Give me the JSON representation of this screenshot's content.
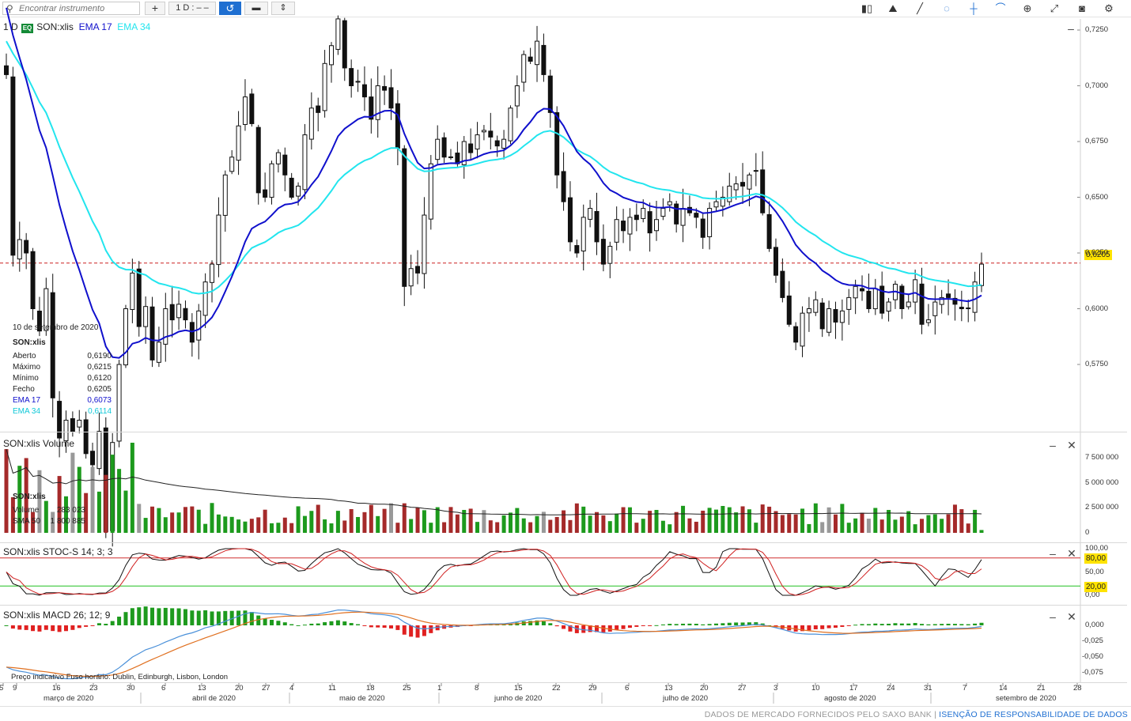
{
  "toolbar": {
    "search_placeholder": "Encontrar instrumento",
    "add_label": "+",
    "period_label": "1 D : – –",
    "icons": [
      "search-icon",
      "plus-icon",
      "refresh-icon",
      "layout-icon",
      "sort-icon",
      "candles-icon",
      "line-chart-icon",
      "draw-icon",
      "hide-icon",
      "crosshair-icon",
      "curve-icon",
      "zoom-icon",
      "fullscreen-icon",
      "camera-icon",
      "settings-icon"
    ]
  },
  "main_pane": {
    "period": "1 D",
    "badge": "EQ",
    "symbol": "SON:xlis",
    "ema17_label": "EMA 17",
    "ema34_label": "EMA 34",
    "ema17_color": "#1010cc",
    "ema34_color": "#22e5ee",
    "y_ticks": [
      "0,7250",
      "0,7000",
      "0,6750",
      "0,6500",
      "0,6250",
      "0,6000",
      "0,5750"
    ],
    "last_price_tag": "0,6205",
    "minimize": "–",
    "info": {
      "date": "10 de setembro de 2020",
      "symbol": "SON:xlis",
      "rows": [
        {
          "k": "Aberto",
          "v": "0,6190"
        },
        {
          "k": "Máximo",
          "v": "0,6215"
        },
        {
          "k": "Mínimo",
          "v": "0,6120"
        },
        {
          "k": "Fecho",
          "v": "0,6205"
        },
        {
          "k": "EMA 17",
          "v": "0,6073"
        },
        {
          "k": "EMA 34",
          "v": "0,6114"
        }
      ]
    }
  },
  "volume_pane": {
    "title": "SON:xlis  Volume",
    "y_ticks": [
      "7 500 000",
      "5 000 000",
      "2 500 000",
      "0"
    ],
    "info": {
      "symbol": "SON:xlis",
      "rows": [
        {
          "k": "Volume",
          "v": "283 023"
        },
        {
          "k": "SMA 50",
          "v": "1 800 885"
        }
      ]
    },
    "minimize": "–",
    "close": "✕"
  },
  "stoc_pane": {
    "title": "SON:xlis  STOC-S 14; 3; 3",
    "y_ticks": [
      "100,00",
      "50,00",
      "0,00"
    ],
    "tag_high": "80,00",
    "tag_low": "20,00",
    "minimize": "–",
    "close": "✕"
  },
  "macd_pane": {
    "title": "SON:xlis  MACD 26; 12; 9",
    "y_ticks": [
      "0,000",
      "-0,025",
      "-0,050",
      "-0,075"
    ],
    "note": "Preço indicativo    Fuso horário: Dublin, Edinburgh, Lisbon, London",
    "minimize": "–",
    "close": "✕"
  },
  "x_axis": {
    "day_ticks": [
      "5",
      "9",
      "16",
      "23",
      "30",
      "6",
      "13",
      "20",
      "27",
      "4",
      "11",
      "18",
      "25",
      "1",
      "8",
      "15",
      "22",
      "29",
      "6",
      "13",
      "20",
      "27",
      "3",
      "10",
      "17",
      "24",
      "31",
      "7",
      "14",
      "21",
      "28"
    ],
    "months": [
      "março de 2020",
      "abril de 2020",
      "maio de 2020",
      "junho de 2020",
      "julho de 2020",
      "agosto de 2020",
      "setembro de 2020"
    ]
  },
  "footer": {
    "text": "DADOS DE MERCADO FORNECIDOS PELO SAXO BANK",
    "link": "ISENÇÃO DE RESPONSABILIDADE DE DADOS"
  },
  "chart_data": {
    "type": "candlestick",
    "symbol": "SON:xlis",
    "x_range": [
      "2020-03-05",
      "2020-09-10"
    ],
    "ylim": [
      0.565,
      0.73
    ],
    "last_close": 0.6205,
    "closes": [
      0.705,
      0.624,
      0.631,
      0.625,
      0.6,
      0.59,
      0.609,
      0.56,
      0.542,
      0.55,
      0.545,
      0.55,
      0.535,
      0.53,
      0.545,
      0.5,
      0.54,
      0.575,
      0.6,
      0.616,
      0.592,
      0.601,
      0.577,
      0.585,
      0.6,
      0.595,
      0.602,
      0.595,
      0.585,
      0.599,
      0.612,
      0.62,
      0.642,
      0.66,
      0.668,
      0.682,
      0.695,
      0.683,
      0.652,
      0.65,
      0.665,
      0.67,
      0.66,
      0.65,
      0.655,
      0.678,
      0.69,
      0.688,
      0.71,
      0.718,
      0.73,
      0.708,
      0.7,
      0.702,
      0.695,
      0.685,
      0.7,
      0.698,
      0.69,
      0.672,
      0.61,
      0.618,
      0.616,
      0.642,
      0.665,
      0.676,
      0.668,
      0.668,
      0.665,
      0.675,
      0.67,
      0.678,
      0.68,
      0.677,
      0.673,
      0.676,
      0.69,
      0.7,
      0.714,
      0.711,
      0.72,
      0.705,
      0.688,
      0.66,
      0.648,
      0.63,
      0.625,
      0.641,
      0.645,
      0.63,
      0.62,
      0.628,
      0.64,
      0.635,
      0.641,
      0.64,
      0.645,
      0.634,
      0.64,
      0.645,
      0.648,
      0.638,
      0.645,
      0.643,
      0.641,
      0.632,
      0.645,
      0.648,
      0.65,
      0.655,
      0.656,
      0.655,
      0.66,
      0.662,
      0.643,
      0.627,
      0.615,
      0.605,
      0.593,
      0.585,
      0.598,
      0.6,
      0.604,
      0.591,
      0.6,
      0.594,
      0.599,
      0.605,
      0.61,
      0.608,
      0.6,
      0.609,
      0.598,
      0.603,
      0.611,
      0.6,
      0.603,
      0.613,
      0.593,
      0.595,
      0.603,
      0.605,
      0.605,
      0.602,
      0.6,
      0.6,
      0.612,
      0.62
    ]
  }
}
